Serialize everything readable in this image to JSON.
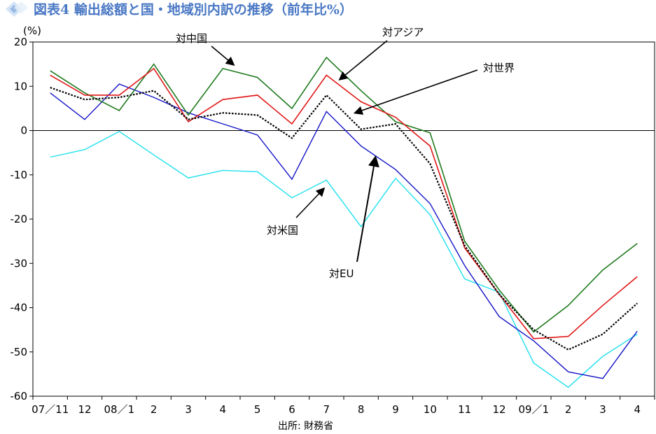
{
  "title": "図表4 輸出総額と国・地域別内訳の推移（前年比%）",
  "source": "出所: 財務省",
  "chart_data": {
    "type": "line",
    "unit_label": "(%)",
    "categories": [
      "07／11",
      "12",
      "08／1",
      "2",
      "3",
      "4",
      "5",
      "6",
      "7",
      "8",
      "9",
      "10",
      "11",
      "12",
      "09／1",
      "2",
      "3",
      "4"
    ],
    "ylim": [
      -60,
      20
    ],
    "yticks": [
      20,
      10,
      0,
      -10,
      -20,
      -30,
      -40,
      -50,
      -60
    ],
    "series": [
      {
        "name": "対中国",
        "color": "#1e7a1e",
        "dash": false,
        "width": 1.6,
        "values": [
          13.5,
          8.5,
          4.5,
          15,
          3.5,
          14,
          12,
          5,
          16.5,
          9,
          2,
          -0.5,
          -25,
          -36,
          -45.5,
          -39.5,
          -31.5,
          -25.5
        ]
      },
      {
        "name": "対アジア",
        "color": "#e01818",
        "dash": false,
        "width": 1.6,
        "values": [
          12.5,
          8,
          8,
          14,
          2,
          7,
          8,
          1.5,
          12.5,
          6.5,
          3,
          -3.5,
          -26.5,
          -37,
          -47,
          -46.5,
          -39.5,
          -33
        ]
      },
      {
        "name": "対世界",
        "color": "#000000",
        "dash": true,
        "width": 2.2,
        "values": [
          9.7,
          7,
          7.5,
          9,
          2.5,
          4,
          3.5,
          -1.7,
          8,
          0.3,
          1.5,
          -7.5,
          -26,
          -37,
          -45,
          -49.5,
          -46,
          -39
        ]
      },
      {
        "name": "対EU",
        "color": "#1515c8",
        "dash": false,
        "width": 1.4,
        "values": [
          8.5,
          2.5,
          10.5,
          7.5,
          4,
          1.5,
          -1,
          -11,
          4.3,
          -3.5,
          -8.8,
          -16.5,
          -30.5,
          -42,
          -47.5,
          -54.5,
          -56,
          -45.3
        ]
      },
      {
        "name": "対米国",
        "color": "#20e0ee",
        "dash": false,
        "width": 1.4,
        "values": [
          -6,
          -4.3,
          -0.2,
          -5.5,
          -10.7,
          -9,
          -9.3,
          -15.2,
          -11.2,
          -21.7,
          -10.8,
          -19,
          -33.5,
          -36.5,
          -52.5,
          -58,
          -51,
          -46
        ]
      }
    ]
  }
}
